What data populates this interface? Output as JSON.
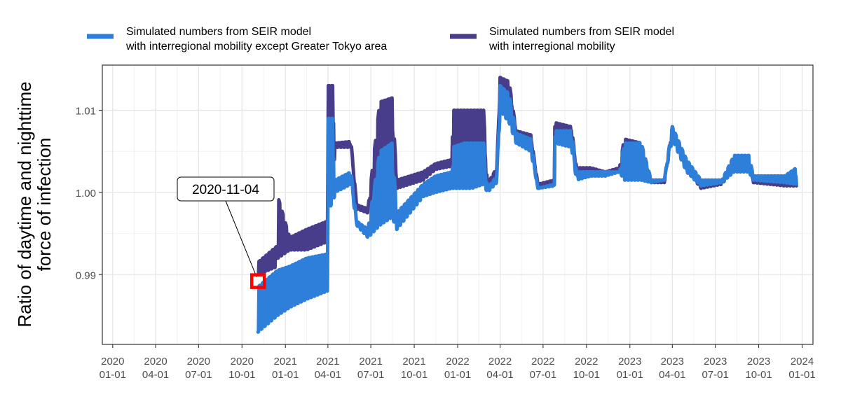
{
  "chart_data": {
    "type": "line",
    "ylabel_lines": [
      "Ratio of daytime and nighttime",
      "force of infection"
    ],
    "xlabel": "",
    "x_ticks": [
      {
        "date": "2020-01-01",
        "line1": "2020",
        "line2": "01-01"
      },
      {
        "date": "2020-04-01",
        "line1": "2020",
        "line2": "04-01"
      },
      {
        "date": "2020-07-01",
        "line1": "2020",
        "line2": "07-01"
      },
      {
        "date": "2020-10-01",
        "line1": "2020",
        "line2": "10-01"
      },
      {
        "date": "2021-01-01",
        "line1": "2021",
        "line2": "01-01"
      },
      {
        "date": "2021-04-01",
        "line1": "2021",
        "line2": "04-01"
      },
      {
        "date": "2021-07-01",
        "line1": "2021",
        "line2": "07-01"
      },
      {
        "date": "2021-10-01",
        "line1": "2021",
        "line2": "10-01"
      },
      {
        "date": "2022-01-01",
        "line1": "2022",
        "line2": "01-01"
      },
      {
        "date": "2022-04-01",
        "line1": "2022",
        "line2": "04-01"
      },
      {
        "date": "2022-07-01",
        "line1": "2022",
        "line2": "07-01"
      },
      {
        "date": "2022-10-01",
        "line1": "2022",
        "line2": "10-01"
      },
      {
        "date": "2023-01-01",
        "line1": "2023",
        "line2": "01-01"
      },
      {
        "date": "2023-04-01",
        "line1": "2023",
        "line2": "04-01"
      },
      {
        "date": "2023-07-01",
        "line1": "2023",
        "line2": "07-01"
      },
      {
        "date": "2023-10-01",
        "line1": "2023",
        "line2": "10-01"
      },
      {
        "date": "2024-01-01",
        "line1": "2024",
        "line2": "01-01"
      }
    ],
    "y_ticks": [
      {
        "value": 0.99,
        "label": "0.99"
      },
      {
        "value": 1.0,
        "label": "1.00"
      },
      {
        "value": 1.01,
        "label": "1.01"
      }
    ],
    "xlim": [
      "2019-12-10",
      "2024-01-24"
    ],
    "ylim": [
      0.9815,
      1.0155
    ],
    "grid": true,
    "legend_position": "top",
    "series": [
      {
        "name_lines": [
          "Simulated numbers from SEIR model",
          "with interregional mobility"
        ],
        "color": "#483D8B",
        "high": [
          [
            "2020-11-04",
            0.9915
          ],
          [
            "2020-12-15",
            0.9935
          ],
          [
            "2020-12-16",
            0.9995
          ],
          [
            "2021-01-10",
            0.9945
          ],
          [
            "2021-02-15",
            0.9955
          ],
          [
            "2021-03-31",
            0.9965
          ],
          [
            "2021-04-01",
            1.013
          ],
          [
            "2021-04-15",
            1.013
          ],
          [
            "2021-04-16",
            1.006
          ],
          [
            "2021-05-20",
            1.0062
          ],
          [
            "2021-06-01",
            0.9985
          ],
          [
            "2021-06-25",
            0.998
          ],
          [
            "2021-07-20",
            1.011
          ],
          [
            "2021-08-15",
            1.0115
          ],
          [
            "2021-08-25",
            1.0015
          ],
          [
            "2021-10-20",
            1.0025
          ],
          [
            "2021-11-15",
            1.0035
          ],
          [
            "2021-12-20",
            1.004
          ],
          [
            "2021-12-21",
            1.01
          ],
          [
            "2022-01-15",
            1.01
          ],
          [
            "2022-01-31",
            1.01
          ],
          [
            "2022-02-25",
            1.01
          ],
          [
            "2022-03-05",
            1.001
          ],
          [
            "2022-03-25",
            1.003
          ],
          [
            "2022-04-01",
            1.014
          ],
          [
            "2022-04-20",
            1.0135
          ],
          [
            "2022-05-05",
            1.0075
          ],
          [
            "2022-06-05",
            1.007
          ],
          [
            "2022-06-20",
            1.001
          ],
          [
            "2022-07-25",
            1.0015
          ],
          [
            "2022-07-26",
            1.0085
          ],
          [
            "2022-08-30",
            1.008
          ],
          [
            "2022-09-10",
            1.003
          ],
          [
            "2022-10-10",
            1.003
          ],
          [
            "2022-11-10",
            1.0025
          ],
          [
            "2022-12-10",
            1.003
          ],
          [
            "2022-12-20",
            1.0065
          ],
          [
            "2023-01-25",
            1.006
          ],
          [
            "2023-02-15",
            1.0015
          ],
          [
            "2023-03-15",
            1.0015
          ],
          [
            "2023-04-01",
            1.008
          ],
          [
            "2023-05-01",
            1.003
          ],
          [
            "2023-06-01",
            1.001
          ],
          [
            "2023-07-15",
            1.0015
          ],
          [
            "2023-08-10",
            1.004
          ],
          [
            "2023-09-10",
            1.004
          ],
          [
            "2023-09-20",
            1.0015
          ],
          [
            "2023-11-25",
            1.001
          ],
          [
            "2023-12-20",
            1.001
          ]
        ],
        "low": [
          [
            "2020-11-04",
            0.99
          ],
          [
            "2020-12-15",
            0.991
          ],
          [
            "2020-12-16",
            0.992
          ],
          [
            "2021-01-10",
            0.993
          ],
          [
            "2021-02-15",
            0.993
          ],
          [
            "2021-03-31",
            0.994
          ],
          [
            "2021-04-01",
            1.003
          ],
          [
            "2021-04-15",
            1.004
          ],
          [
            "2021-04-16",
            1.0055
          ],
          [
            "2021-05-20",
            1.0055
          ],
          [
            "2021-06-01",
            0.998
          ],
          [
            "2021-06-25",
            0.9975
          ],
          [
            "2021-07-20",
            1.004
          ],
          [
            "2021-08-15",
            1.005
          ],
          [
            "2021-08-25",
            1.0005
          ],
          [
            "2021-10-20",
            1.0015
          ],
          [
            "2021-11-15",
            1.0028
          ],
          [
            "2021-12-20",
            1.0032
          ],
          [
            "2021-12-21",
            1.0035
          ],
          [
            "2022-01-15",
            1.004
          ],
          [
            "2022-01-31",
            1.004
          ],
          [
            "2022-02-25",
            1.0045
          ],
          [
            "2022-03-05",
            1.0005
          ],
          [
            "2022-03-25",
            1.0025
          ],
          [
            "2022-04-01",
            1.0125
          ],
          [
            "2022-04-20",
            1.0115
          ],
          [
            "2022-05-05",
            1.007
          ],
          [
            "2022-06-05",
            1.0065
          ],
          [
            "2022-06-20",
            1.0005
          ],
          [
            "2022-07-25",
            1.0008
          ],
          [
            "2022-07-26",
            1.0075
          ],
          [
            "2022-08-30",
            1.007
          ],
          [
            "2022-09-10",
            1.0022
          ],
          [
            "2022-10-10",
            1.0025
          ],
          [
            "2022-11-10",
            1.0022
          ],
          [
            "2022-12-10",
            1.0025
          ],
          [
            "2022-12-20",
            1.0035
          ],
          [
            "2023-01-25",
            1.004
          ],
          [
            "2023-02-15",
            1.0012
          ],
          [
            "2023-03-15",
            1.0012
          ],
          [
            "2023-04-01",
            1.007
          ],
          [
            "2023-05-01",
            1.0028
          ],
          [
            "2023-06-01",
            1.0005
          ],
          [
            "2023-07-15",
            1.001
          ],
          [
            "2023-08-10",
            1.003
          ],
          [
            "2023-09-10",
            1.003
          ],
          [
            "2023-09-20",
            1.0012
          ],
          [
            "2023-11-25",
            1.0008
          ],
          [
            "2023-12-20",
            1.0008
          ]
        ]
      },
      {
        "name_lines": [
          "Simulated numbers from SEIR model",
          "with interregional mobility except Greater Tokyo area"
        ],
        "color": "#2E7FDA",
        "high": [
          [
            "2020-11-04",
            0.9885
          ],
          [
            "2020-12-15",
            0.9905
          ],
          [
            "2021-01-10",
            0.991
          ],
          [
            "2021-02-15",
            0.992
          ],
          [
            "2021-03-31",
            0.9925
          ],
          [
            "2021-04-01",
            1.009
          ],
          [
            "2021-04-15",
            1.009
          ],
          [
            "2021-04-16",
            1.0015
          ],
          [
            "2021-05-20",
            1.0025
          ],
          [
            "2021-06-01",
            0.9965
          ],
          [
            "2021-06-25",
            0.9955
          ],
          [
            "2021-07-20",
            1.005
          ],
          [
            "2021-08-15",
            1.006
          ],
          [
            "2021-08-25",
            0.9975
          ],
          [
            "2021-10-20",
            1.001
          ],
          [
            "2021-11-15",
            1.002
          ],
          [
            "2021-12-20",
            1.0025
          ],
          [
            "2021-12-21",
            1.0055
          ],
          [
            "2022-01-15",
            1.006
          ],
          [
            "2022-01-31",
            1.006
          ],
          [
            "2022-02-25",
            1.006
          ],
          [
            "2022-03-05",
            1.0005
          ],
          [
            "2022-03-25",
            1.002
          ],
          [
            "2022-04-01",
            1.013
          ],
          [
            "2022-04-20",
            1.012
          ],
          [
            "2022-05-05",
            1.0072
          ],
          [
            "2022-06-05",
            1.0065
          ],
          [
            "2022-06-20",
            1.0005
          ],
          [
            "2022-07-25",
            1.001
          ],
          [
            "2022-07-26",
            1.0075
          ],
          [
            "2022-08-30",
            1.0075
          ],
          [
            "2022-09-10",
            1.0025
          ],
          [
            "2022-10-10",
            1.0025
          ],
          [
            "2022-11-10",
            1.0025
          ],
          [
            "2022-12-10",
            1.0025
          ],
          [
            "2022-12-20",
            1.006
          ],
          [
            "2023-01-25",
            1.006
          ],
          [
            "2023-02-15",
            1.0015
          ],
          [
            "2023-03-15",
            1.0015
          ],
          [
            "2023-04-01",
            1.008
          ],
          [
            "2023-05-01",
            1.004
          ],
          [
            "2023-06-01",
            1.0015
          ],
          [
            "2023-07-15",
            1.0015
          ],
          [
            "2023-08-10",
            1.0045
          ],
          [
            "2023-09-10",
            1.0045
          ],
          [
            "2023-09-20",
            1.002
          ],
          [
            "2023-11-25",
            1.002
          ],
          [
            "2023-12-20",
            1.003
          ]
        ],
        "low": [
          [
            "2020-11-04",
            0.983
          ],
          [
            "2020-12-15",
            0.985
          ],
          [
            "2021-01-10",
            0.986
          ],
          [
            "2021-02-15",
            0.987
          ],
          [
            "2021-03-31",
            0.988
          ],
          [
            "2021-04-01",
            0.9975
          ],
          [
            "2021-04-15",
            0.9995
          ],
          [
            "2021-04-16",
            1.0
          ],
          [
            "2021-05-20",
            1.001
          ],
          [
            "2021-06-01",
            0.996
          ],
          [
            "2021-06-25",
            0.9945
          ],
          [
            "2021-07-20",
            0.996
          ],
          [
            "2021-08-15",
            0.997
          ],
          [
            "2021-08-25",
            0.9955
          ],
          [
            "2021-10-20",
            0.9995
          ],
          [
            "2021-11-15",
            1.0
          ],
          [
            "2021-12-20",
            1.0005
          ],
          [
            "2021-12-21",
            1.0005
          ],
          [
            "2022-01-15",
            1.0005
          ],
          [
            "2022-01-31",
            1.0005
          ],
          [
            "2022-02-25",
            1.001
          ],
          [
            "2022-03-05",
            1.0
          ],
          [
            "2022-03-25",
            1.0012
          ],
          [
            "2022-04-01",
            1.01
          ],
          [
            "2022-04-20",
            1.0085
          ],
          [
            "2022-05-05",
            1.006
          ],
          [
            "2022-06-05",
            1.005
          ],
          [
            "2022-06-20",
            1.0005
          ],
          [
            "2022-07-25",
            1.0008
          ],
          [
            "2022-07-26",
            1.006
          ],
          [
            "2022-08-30",
            1.0055
          ],
          [
            "2022-09-10",
            1.0015
          ],
          [
            "2022-10-10",
            1.002
          ],
          [
            "2022-11-10",
            1.002
          ],
          [
            "2022-12-10",
            1.0025
          ],
          [
            "2022-12-20",
            1.0015
          ],
          [
            "2023-01-25",
            1.0015
          ],
          [
            "2023-02-15",
            1.0012
          ],
          [
            "2023-03-15",
            1.0015
          ],
          [
            "2023-04-01",
            1.0065
          ],
          [
            "2023-05-01",
            1.0025
          ],
          [
            "2023-06-01",
            1.0008
          ],
          [
            "2023-07-15",
            1.0012
          ],
          [
            "2023-08-10",
            1.0025
          ],
          [
            "2023-09-10",
            1.0025
          ],
          [
            "2023-09-20",
            1.0015
          ],
          [
            "2023-11-25",
            1.0012
          ],
          [
            "2023-12-20",
            1.001
          ]
        ]
      }
    ],
    "legend_order": [
      1,
      0
    ],
    "annotation": {
      "label": "2020-11-04",
      "date": "2020-11-04",
      "value": 0.9892,
      "marker_color": "#FF0000"
    }
  }
}
